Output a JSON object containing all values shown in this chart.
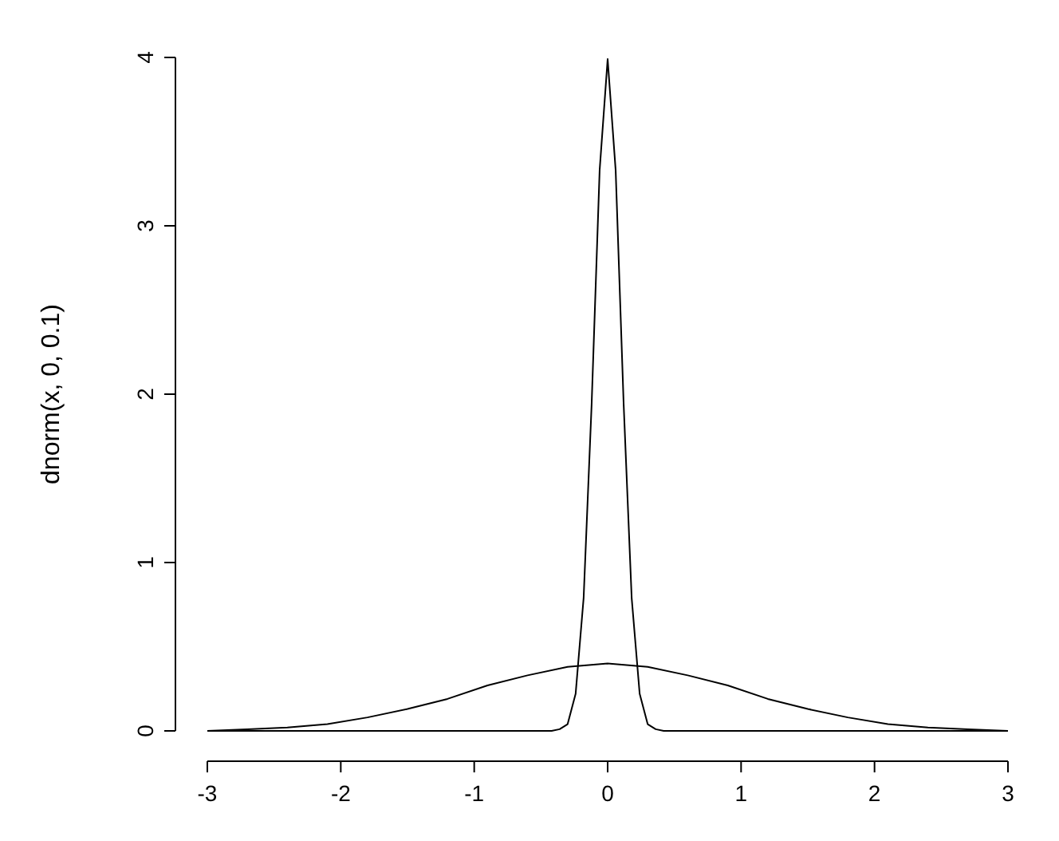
{
  "chart_data": {
    "type": "line",
    "ylabel": "dnorm(x, 0, 0.1)",
    "xlim": [
      -3,
      3
    ],
    "ylim": [
      0,
      4
    ],
    "xticks": [
      -3,
      -2,
      -1,
      0,
      1,
      2,
      3
    ],
    "yticks": [
      0,
      1,
      2,
      3,
      4
    ],
    "grid": false,
    "marker": "none",
    "line_style": "solid",
    "series": [
      {
        "color": "#000000",
        "x": [
          -3,
          -0.42,
          -0.36,
          -0.3,
          -0.24,
          -0.18,
          -0.12,
          -0.06,
          0,
          0.06,
          0.12,
          0.18,
          0.24,
          0.3,
          0.36,
          0.42,
          3
        ],
        "values": [
          0,
          0,
          0.01,
          0.04,
          0.22,
          0.79,
          1.94,
          3.33,
          3.99,
          3.33,
          1.94,
          0.79,
          0.22,
          0.04,
          0.01,
          0,
          0
        ]
      },
      {
        "color": "#000000",
        "x": [
          -3,
          -2.7,
          -2.4,
          -2.1,
          -1.8,
          -1.5,
          -1.2,
          -0.9,
          -0.6,
          -0.3,
          0,
          0.3,
          0.6,
          0.9,
          1.2,
          1.5,
          1.8,
          2.1,
          2.4,
          2.7,
          3
        ],
        "values": [
          0,
          0.01,
          0.02,
          0.04,
          0.08,
          0.13,
          0.19,
          0.27,
          0.33,
          0.38,
          0.4,
          0.38,
          0.33,
          0.27,
          0.19,
          0.13,
          0.08,
          0.04,
          0.02,
          0.01,
          0
        ]
      }
    ]
  }
}
